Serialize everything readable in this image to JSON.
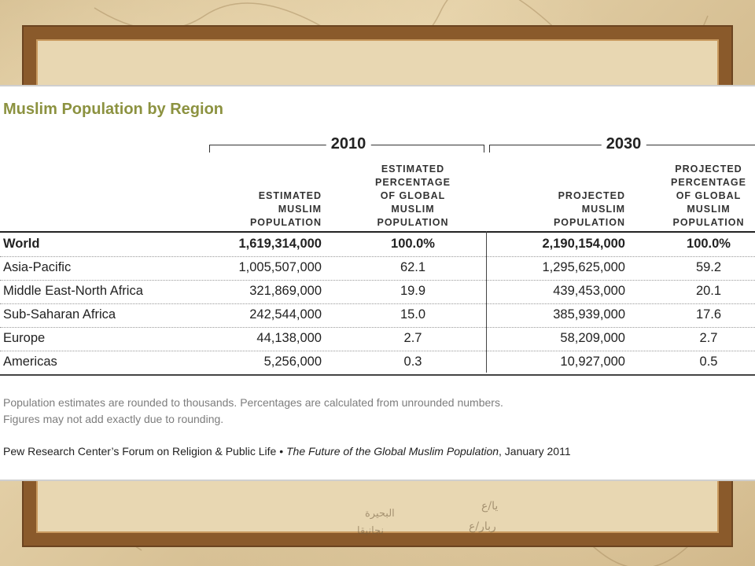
{
  "chart_data": {
    "type": "table",
    "title": "Muslim Population by Region",
    "year_groups": [
      "2010",
      "2030"
    ],
    "columns": [
      "ESTIMATED\nMUSLIM\nPOPULATION",
      "ESTIMATED\nPERCENTAGE\nOF GLOBAL\nMUSLIM\nPOPULATION",
      "PROJECTED\nMUSLIM\nPOPULATION",
      "PROJECTED\nPERCENTAGE\nOF GLOBAL\nMUSLIM\nPOPULATION"
    ],
    "rows": [
      {
        "region": "World",
        "pop_2010": "1,619,314,000",
        "pct_2010": "100.0%",
        "pop_2030": "2,190,154,000",
        "pct_2030": "100.0%"
      },
      {
        "region": "Asia-Pacific",
        "pop_2010": "1,005,507,000",
        "pct_2010": "62.1",
        "pop_2030": "1,295,625,000",
        "pct_2030": "59.2"
      },
      {
        "region": "Middle East-North Africa",
        "pop_2010": "321,869,000",
        "pct_2010": "19.9",
        "pop_2030": "439,453,000",
        "pct_2030": "20.1"
      },
      {
        "region": "Sub-Saharan Africa",
        "pop_2010": "242,544,000",
        "pct_2010": "15.0",
        "pop_2030": "385,939,000",
        "pct_2030": "17.6"
      },
      {
        "region": "Europe",
        "pop_2010": "44,138,000",
        "pct_2010": "2.7",
        "pop_2030": "58,209,000",
        "pct_2030": "2.7"
      },
      {
        "region": "Americas",
        "pop_2010": "5,256,000",
        "pct_2010": "0.3",
        "pop_2030": "10,927,000",
        "pct_2030": "0.5"
      }
    ],
    "note": "Population estimates are rounded to thousands. Percentages are calculated from unrounded numbers.\nFigures may not add exactly due to rounding.",
    "source_prefix": "Pew Research Center’s Forum on Religion & Public Life • ",
    "source_title": "The Future of the Global Muslim Population",
    "source_suffix": ", January 2011"
  },
  "background": {
    "arabic_labels": [
      "يا/ع",
      "ربار/ع",
      "البحيرة",
      "نجانيقا"
    ]
  },
  "colors": {
    "title": "#8c9240",
    "frame": "#8a5a2b",
    "parchment": "#d9c39a"
  }
}
